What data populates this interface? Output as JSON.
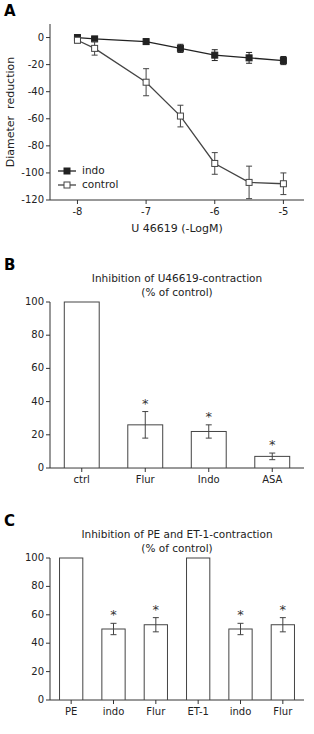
{
  "chart_data": [
    {
      "type": "line",
      "label": "A",
      "x_label": "U 46619 (-LogM)",
      "y_label": "Diameter  reduction",
      "xlim": [
        -8.4,
        -4.7
      ],
      "ylim": [
        -120,
        10
      ],
      "xticks": [
        -8,
        -7,
        -6,
        -5
      ],
      "yticks": [
        0,
        -20,
        -40,
        -60,
        -80,
        -100,
        -120
      ],
      "grid": false,
      "legend": "lower left",
      "series": [
        {
          "name": "indo",
          "color": "#222222",
          "marker": "square",
          "line_style": "solid",
          "x": [
            -8,
            -7.75,
            -7,
            -6.5,
            -6,
            -5.5,
            -5
          ],
          "values": [
            0,
            -1,
            -3,
            -8,
            -13,
            -15,
            -17
          ],
          "yerr": [
            1,
            1,
            2,
            3,
            4,
            4,
            3
          ]
        },
        {
          "name": "control",
          "color": "#444444",
          "marker": "open-square",
          "line_style": "solid",
          "x": [
            -8,
            -7.75,
            -7,
            -6.5,
            -6,
            -5.5,
            -5
          ],
          "values": [
            -2,
            -8,
            -33,
            -58,
            -93,
            -107,
            -108
          ],
          "yerr": [
            2,
            5,
            10,
            8,
            8,
            12,
            8
          ]
        }
      ]
    },
    {
      "type": "bar",
      "label": "B",
      "title": "Inhibition of U46619-contraction",
      "subtitle": "(% of control)",
      "categories": [
        "ctrl",
        "Flur",
        "Indo",
        "ASA"
      ],
      "values": [
        100,
        26,
        22,
        7
      ],
      "yerr": [
        0,
        8,
        4,
        2
      ],
      "annotations": [
        null,
        "*",
        "*",
        "*"
      ],
      "color": "#444444",
      "ylim": [
        0,
        100
      ],
      "yticks": [
        0,
        20,
        40,
        60,
        80,
        100
      ],
      "grid": false
    },
    {
      "type": "bar",
      "label": "C",
      "title": "Inhibition of PE and ET-1-contraction",
      "subtitle": "(% of control)",
      "categories": [
        "PE",
        "indo",
        "Flur",
        "ET-1",
        "indo",
        "Flur"
      ],
      "values": [
        100,
        50,
        53,
        100,
        50,
        53
      ],
      "yerr": [
        0,
        4,
        5,
        0,
        4,
        5
      ],
      "annotations": [
        null,
        "*",
        "*",
        null,
        "*",
        "*"
      ],
      "color": "#444444",
      "ylim": [
        0,
        100
      ],
      "yticks": [
        0,
        20,
        40,
        60,
        80,
        100
      ],
      "grid": false
    }
  ]
}
